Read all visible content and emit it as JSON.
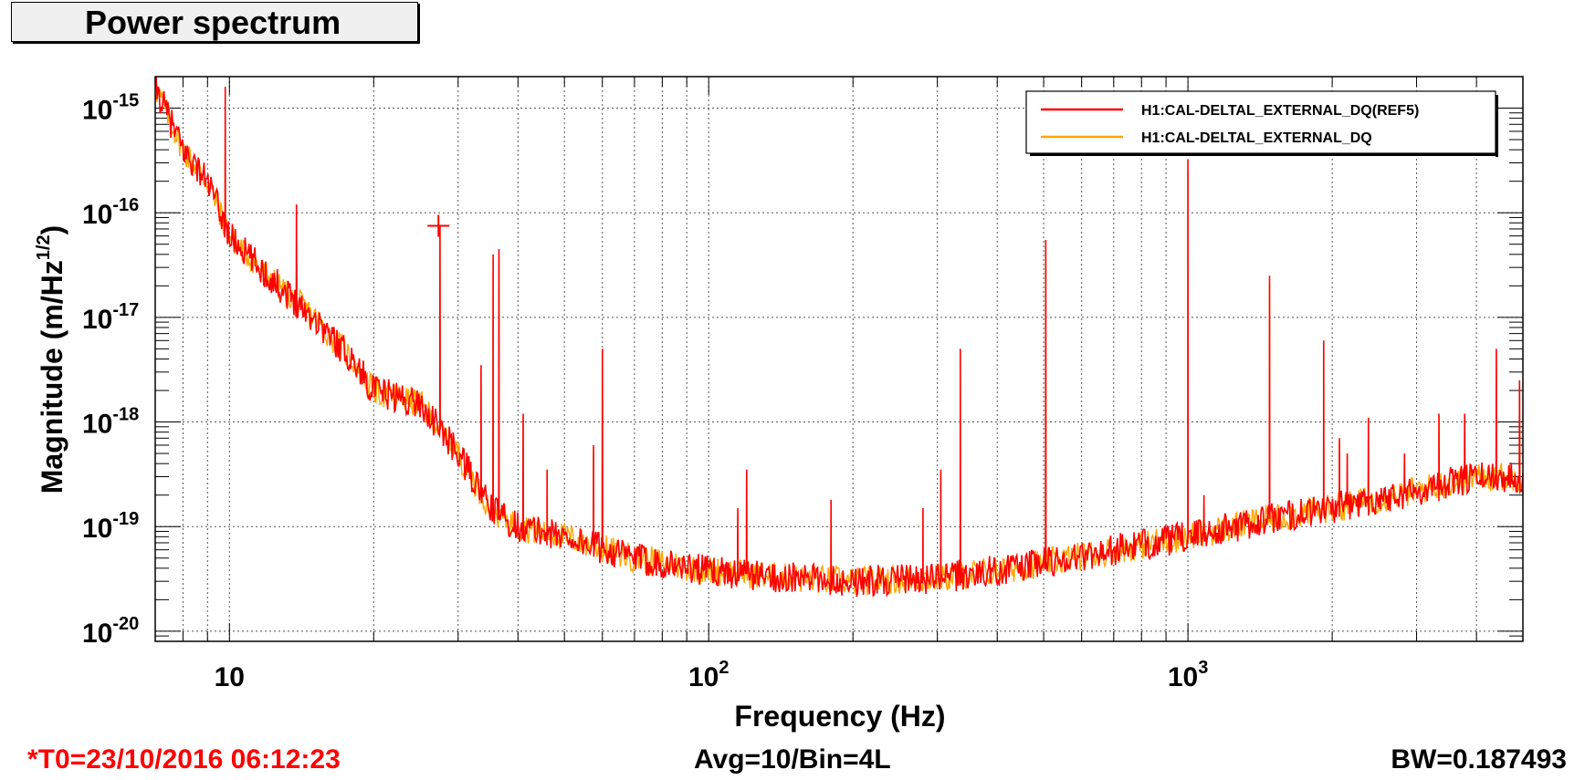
{
  "title": "Power spectrum",
  "footer": {
    "t0": "*T0=23/10/2016 06:12:23",
    "avg": "Avg=10/Bin=4L",
    "bw": "BW=0.187493"
  },
  "chart_data": {
    "type": "line",
    "title": "Power spectrum",
    "xlabel": "Frequency (Hz)",
    "ylabel_main": "Magnitude (m/Hz",
    "ylabel_sup": "1/2",
    "ylabel_end": ")",
    "x_scale": "log",
    "y_scale": "log",
    "xlim": [
      7,
      5000
    ],
    "ylim": [
      8e-21,
      2e-15
    ],
    "grid": true,
    "legend_position": "top-right",
    "x_ticks": [
      {
        "value": 10,
        "base": "10",
        "exp": ""
      },
      {
        "value": 100,
        "base": "10",
        "exp": "2"
      },
      {
        "value": 1000,
        "base": "10",
        "exp": "3"
      }
    ],
    "y_ticks": [
      {
        "value": 1e-20,
        "base": "10",
        "exp": "-20"
      },
      {
        "value": 1e-19,
        "base": "10",
        "exp": "-19"
      },
      {
        "value": 1e-18,
        "base": "10",
        "exp": "-18"
      },
      {
        "value": 1e-17,
        "base": "10",
        "exp": "-17"
      },
      {
        "value": 1e-16,
        "base": "10",
        "exp": "-16"
      },
      {
        "value": 1e-15,
        "base": "10",
        "exp": "-15"
      }
    ],
    "floor_points": [
      [
        7,
        1.6e-15
      ],
      [
        8,
        4e-16
      ],
      [
        9,
        2e-16
      ],
      [
        10,
        6e-17
      ],
      [
        12,
        2.5e-17
      ],
      [
        15,
        1e-17
      ],
      [
        18,
        4e-18
      ],
      [
        20,
        2e-18
      ],
      [
        25,
        1.5e-18
      ],
      [
        30,
        5e-19
      ],
      [
        35,
        1.5e-19
      ],
      [
        40,
        1e-19
      ],
      [
        50,
        8e-20
      ],
      [
        70,
        5e-20
      ],
      [
        100,
        3.8e-20
      ],
      [
        150,
        3.2e-20
      ],
      [
        200,
        3e-20
      ],
      [
        300,
        3.2e-20
      ],
      [
        400,
        3.8e-20
      ],
      [
        500,
        4.5e-20
      ],
      [
        700,
        6e-20
      ],
      [
        1000,
        8e-20
      ],
      [
        1500,
        1.2e-19
      ],
      [
        2000,
        1.5e-19
      ],
      [
        3000,
        2.2e-19
      ],
      [
        4000,
        3e-19
      ],
      [
        5000,
        3e-19
      ]
    ],
    "peaks": [
      [
        9.8,
        1.6e-15
      ],
      [
        13.8,
        1.2e-16
      ],
      [
        27.5,
        7.5e-17
      ],
      [
        33.5,
        3.5e-18
      ],
      [
        35.5,
        4e-17
      ],
      [
        36.5,
        4.5e-17
      ],
      [
        41,
        1.2e-18
      ],
      [
        46,
        3.5e-19
      ],
      [
        57.5,
        6e-19
      ],
      [
        60,
        5e-18
      ],
      [
        115,
        1.5e-19
      ],
      [
        120,
        3.5e-19
      ],
      [
        180,
        1.8e-19
      ],
      [
        280,
        1.5e-19
      ],
      [
        305,
        3.5e-19
      ],
      [
        335,
        5e-18
      ],
      [
        505,
        5.5e-17
      ],
      [
        1000,
        3.2e-16
      ],
      [
        1080,
        2e-19
      ],
      [
        1480,
        2.5e-17
      ],
      [
        1920,
        6e-18
      ],
      [
        2070,
        7e-19
      ],
      [
        2150,
        5e-19
      ],
      [
        2380,
        1.1e-18
      ],
      [
        2830,
        5e-19
      ],
      [
        3340,
        1.2e-18
      ],
      [
        3780,
        1.2e-18
      ],
      [
        4400,
        5e-18
      ],
      [
        4920,
        2.5e-18
      ]
    ],
    "cursor_marker": {
      "x": 27.3,
      "y": 7.5e-17
    },
    "series": [
      {
        "name": "H1:CAL-DELTAL_EXTERNAL_DQ(REF5)",
        "color": "#ff0000"
      },
      {
        "name": "H1:CAL-DELTAL_EXTERNAL_DQ",
        "color": "#ffa500"
      }
    ]
  }
}
